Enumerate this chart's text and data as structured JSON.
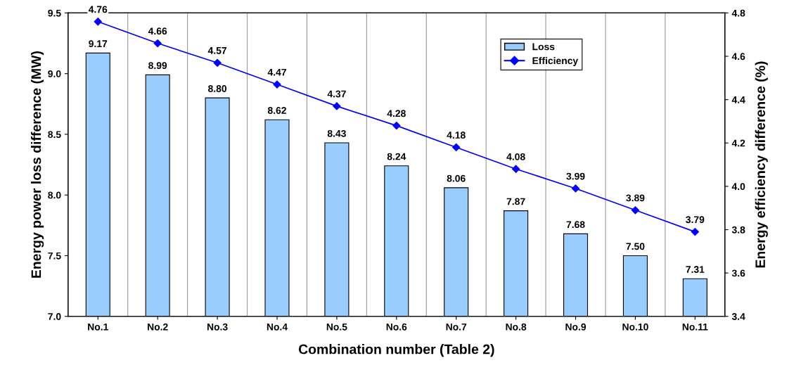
{
  "chart_data": {
    "type": "bar",
    "xlabel": "Combination number (Table 2)",
    "ylabel": "Energy power loss difference (MW)",
    "y2label": "Energy efficiency difference (%)",
    "categories": [
      "No.1",
      "No.2",
      "No.3",
      "No.4",
      "No.5",
      "No.6",
      "No.7",
      "No.8",
      "No.9",
      "No.10",
      "No.11"
    ],
    "series": [
      {
        "name": "Loss",
        "color": "#99ccff",
        "values": [
          9.17,
          8.99,
          8.8,
          8.62,
          8.43,
          8.24,
          8.06,
          7.87,
          7.68,
          7.5,
          7.31
        ],
        "value_labels": [
          "9.17",
          "8.99",
          "8.80",
          "8.62",
          "8.43",
          "8.24",
          "8.06",
          "7.87",
          "7.68",
          "7.50",
          "7.31"
        ]
      },
      {
        "name": "Efficiency",
        "type": "line",
        "axis": "y2",
        "color": "#0000ff",
        "marker": "diamond",
        "line_style": "solid",
        "values": [
          4.76,
          4.66,
          4.57,
          4.47,
          4.37,
          4.28,
          4.18,
          4.08,
          3.99,
          3.89,
          3.79
        ],
        "value_labels": [
          "4.76",
          "4.66",
          "4.57",
          "4.47",
          "4.37",
          "4.28",
          "4.18",
          "4.08",
          "3.99",
          "3.89",
          "3.79"
        ]
      }
    ],
    "ylim": [
      7.0,
      9.5
    ],
    "yticks": [
      {
        "value": 7.0,
        "label": "7.0"
      },
      {
        "value": 7.5,
        "label": "7.5"
      },
      {
        "value": 8.0,
        "label": "8.0"
      },
      {
        "value": 8.5,
        "label": "8.5"
      },
      {
        "value": 9.0,
        "label": "9.0"
      },
      {
        "value": 9.5,
        "label": "9.5"
      }
    ],
    "y2lim": [
      3.4,
      4.8
    ],
    "y2ticks": [
      {
        "value": 3.4,
        "label": "3.4"
      },
      {
        "value": 3.6,
        "label": "3.6"
      },
      {
        "value": 3.8,
        "label": "3.8"
      },
      {
        "value": 4.0,
        "label": "4.0"
      },
      {
        "value": 4.2,
        "label": "4.2"
      },
      {
        "value": 4.4,
        "label": "4.4"
      },
      {
        "value": 4.6,
        "label": "4.6"
      },
      {
        "value": 4.8,
        "label": "4.8"
      }
    ],
    "grid": "x",
    "legend": "top right"
  }
}
